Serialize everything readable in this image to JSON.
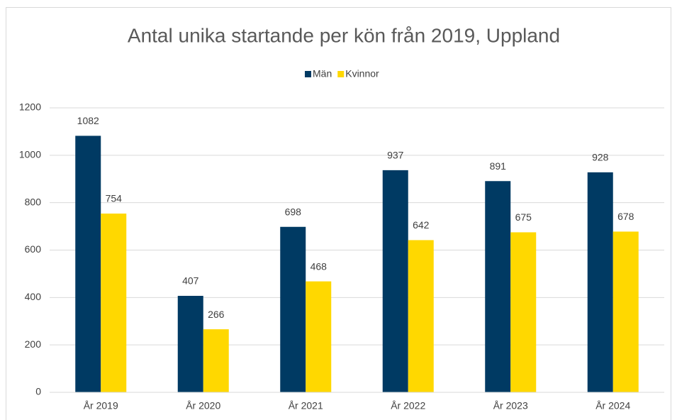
{
  "chart_data": {
    "type": "bar",
    "title": "Antal unika startande per kön från 2019, Uppland",
    "categories": [
      "År 2019",
      "År 2020",
      "År 2021",
      "År 2022",
      "År 2023",
      "År 2024"
    ],
    "series": [
      {
        "name": "Män",
        "color": "#003a63",
        "values": [
          1082,
          407,
          698,
          937,
          891,
          928
        ]
      },
      {
        "name": "Kvinnor",
        "color": "#ffd800",
        "values": [
          754,
          266,
          468,
          642,
          675,
          678
        ]
      }
    ],
    "ylim": [
      0,
      1200
    ],
    "yticks": [
      0,
      200,
      400,
      600,
      800,
      1000,
      1200
    ],
    "grid": true,
    "legend": "top"
  }
}
